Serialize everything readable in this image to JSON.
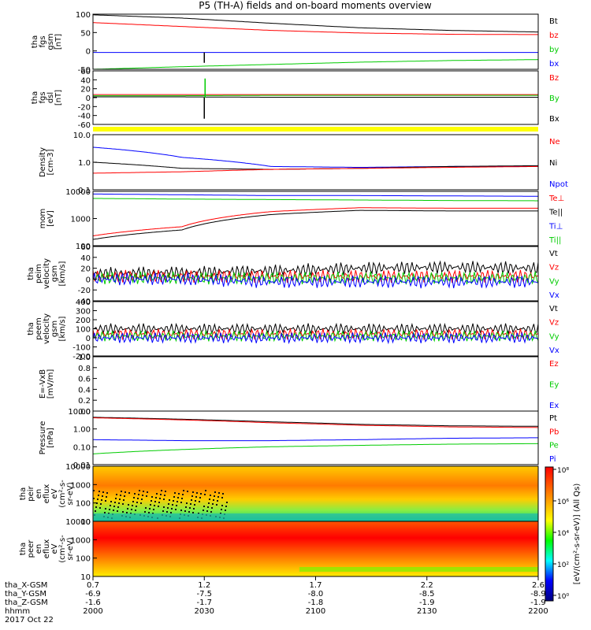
{
  "title": "P5 (TH-A) fields and on-board moments overview",
  "date_label": "2017 Oct 22",
  "footer": {
    "rows": [
      {
        "label": "tha_X-GSM",
        "values": [
          "0.7",
          "1.2",
          "1.7",
          "2.2",
          "2.6"
        ]
      },
      {
        "label": "tha_Y-GSM",
        "values": [
          "-6.9",
          "-7.5",
          "-8.0",
          "-8.5",
          "-8.9"
        ]
      },
      {
        "label": "tha_Z-GSM",
        "values": [
          "-1.6",
          "-1.7",
          "-1.8",
          "-1.9",
          "-1.9"
        ]
      },
      {
        "label": "hhmm",
        "values": [
          "2000",
          "2030",
          "2100",
          "2130",
          "2200"
        ]
      }
    ]
  },
  "colorbar": {
    "ticks": [
      "10⁸",
      "10⁶",
      "10⁴",
      "10²",
      "10⁰"
    ],
    "label": "[eV/(cm²-s-sr-eV)] (All Qs)"
  },
  "colors": {
    "black": "#000000",
    "red": "#ff0000",
    "green": "#00cc00",
    "blue": "#0000ff",
    "yellow": "#ffff00"
  },
  "chart_data": [
    {
      "type": "line",
      "ylabel": [
        "tha",
        "fgs",
        "gsm",
        "[nT]"
      ],
      "ylim": [
        -60,
        110
      ],
      "yticks": [
        "100",
        "50",
        "0",
        "-50"
      ],
      "legend": [
        {
          "label": "Bt",
          "color": "#000000"
        },
        {
          "label": "bz",
          "color": "#ff0000"
        },
        {
          "label": "by",
          "color": "#00cc00"
        },
        {
          "label": "bx",
          "color": "#0000ff"
        }
      ],
      "series": [
        {
          "name": "Bt",
          "color": "#000000",
          "values": [
            108,
            98,
            82,
            68,
            60,
            55
          ]
        },
        {
          "name": "bz",
          "color": "#ff0000",
          "values": [
            84,
            72,
            60,
            52,
            48,
            47
          ]
        },
        {
          "name": "by",
          "color": "#00cc00",
          "values": [
            -60,
            -52,
            -45,
            -38,
            -33,
            -30
          ]
        },
        {
          "name": "bx",
          "color": "#0000ff",
          "values": [
            -8,
            -8,
            -8,
            -8,
            -8,
            -8
          ]
        }
      ]
    },
    {
      "type": "line",
      "ylabel": [
        "tha",
        "fgs",
        "dsl",
        "[nT]"
      ],
      "ylim": [
        -70,
        70
      ],
      "yticks": [
        "60",
        "40",
        "20",
        "0",
        "-20",
        "-40",
        "-60"
      ],
      "legend": [
        {
          "label": "Bz",
          "color": "#ff0000"
        },
        {
          "label": "By",
          "color": "#00cc00"
        },
        {
          "label": "Bx",
          "color": "#000000"
        }
      ],
      "series": [
        {
          "name": "Bz",
          "color": "#ff0000",
          "values": [
            8,
            8,
            8,
            8,
            8,
            8
          ]
        },
        {
          "name": "By",
          "color": "#00cc00",
          "values": [
            5,
            5,
            6,
            6,
            6,
            6
          ]
        },
        {
          "name": "Bx",
          "color": "#000000",
          "values": [
            2,
            2,
            1,
            1,
            1,
            1
          ]
        }
      ]
    },
    {
      "type": "line",
      "ylabel": [
        "Density",
        "[cm-3]"
      ],
      "ylim": [
        0.1,
        10
      ],
      "log": true,
      "yticks": [
        "10.0",
        "1.0",
        "0.1"
      ],
      "legend": [
        {
          "label": "Ne",
          "color": "#ff0000"
        },
        {
          "label": "Ni",
          "color": "#000000"
        },
        {
          "label": "Npot",
          "color": "#0000ff"
        }
      ],
      "series": [
        {
          "name": "Npot",
          "color": "#0000ff",
          "values": [
            3.5,
            1.5,
            0.7,
            0.65,
            0.7,
            0.7
          ]
        },
        {
          "name": "Ni",
          "color": "#000000",
          "values": [
            1.0,
            0.6,
            0.55,
            0.6,
            0.7,
            0.75
          ]
        },
        {
          "name": "Ne",
          "color": "#ff0000",
          "values": [
            0.4,
            0.45,
            0.55,
            0.6,
            0.65,
            0.7
          ]
        }
      ]
    },
    {
      "type": "line",
      "ylabel": [
        "mom",
        "[eV]"
      ],
      "ylim": [
        100,
        10000
      ],
      "log": true,
      "yticks": [
        "10000",
        "1000",
        "100"
      ],
      "legend": [
        {
          "label": "Te⊥",
          "color": "#ff0000"
        },
        {
          "label": "Te||",
          "color": "#000000"
        },
        {
          "label": "Ti⊥",
          "color": "#0000ff"
        },
        {
          "label": "Ti||",
          "color": "#00cc00"
        }
      ],
      "series": [
        {
          "name": "Ti⊥",
          "color": "#0000ff",
          "values": [
            8000,
            7500,
            7000,
            7000,
            6800,
            6600
          ]
        },
        {
          "name": "Ti||",
          "color": "#00cc00",
          "values": [
            5500,
            5200,
            5000,
            4800,
            4600,
            4500
          ]
        },
        {
          "name": "Te⊥",
          "color": "#ff0000",
          "values": [
            230,
            500,
            1800,
            2500,
            2400,
            2400
          ]
        },
        {
          "name": "Te||",
          "color": "#000000",
          "values": [
            170,
            380,
            1400,
            2000,
            1900,
            1900
          ]
        }
      ]
    },
    {
      "type": "line",
      "ylabel": [
        "tha",
        "peim",
        "velocity",
        "gsm",
        "[km/s]"
      ],
      "ylim": [
        -40,
        60
      ],
      "yticks": [
        "60",
        "40",
        "20",
        "0",
        "-20",
        "-40"
      ],
      "legend": [
        {
          "label": "Vt",
          "color": "#000000"
        },
        {
          "label": "Vz",
          "color": "#ff0000"
        },
        {
          "label": "Vy",
          "color": "#00cc00"
        },
        {
          "label": "Vx",
          "color": "#0000ff"
        }
      ],
      "series": [
        {
          "name": "Vt",
          "color": "#000000",
          "values": [
            10,
            12,
            15,
            20,
            22,
            20
          ]
        },
        {
          "name": "Vz",
          "color": "#ff0000",
          "values": [
            5,
            5,
            5,
            5,
            5,
            5
          ]
        },
        {
          "name": "Vy",
          "color": "#00cc00",
          "values": [
            2,
            2,
            2,
            2,
            2,
            2
          ]
        },
        {
          "name": "Vx",
          "color": "#0000ff",
          "values": [
            0,
            0,
            -5,
            -5,
            -5,
            -5
          ]
        }
      ]
    },
    {
      "type": "line",
      "ylabel": [
        "tha",
        "peem",
        "velocity",
        "gsm",
        "[km/s]"
      ],
      "ylim": [
        -200,
        400
      ],
      "yticks": [
        "400",
        "300",
        "200",
        "100",
        "0",
        "-100",
        "-200"
      ],
      "legend": [
        {
          "label": "Vt",
          "color": "#000000"
        },
        {
          "label": "Vz",
          "color": "#ff0000"
        },
        {
          "label": "Vy",
          "color": "#00cc00"
        },
        {
          "label": "Vx",
          "color": "#0000ff"
        }
      ],
      "series": [
        {
          "name": "Vt",
          "color": "#000000",
          "values": [
            100,
            100,
            100,
            100,
            100,
            100
          ]
        },
        {
          "name": "Vz",
          "color": "#ff0000",
          "values": [
            40,
            40,
            40,
            40,
            40,
            40
          ]
        },
        {
          "name": "Vy",
          "color": "#00cc00",
          "values": [
            20,
            20,
            20,
            20,
            20,
            20
          ]
        },
        {
          "name": "Vx",
          "color": "#0000ff",
          "values": [
            0,
            0,
            0,
            0,
            0,
            0
          ]
        }
      ]
    },
    {
      "type": "line",
      "ylabel": [
        "E=-VxB",
        "[mV/m]"
      ],
      "ylim": [
        0,
        1
      ],
      "yticks": [
        "1.0",
        "0.8",
        "0.6",
        "0.4",
        "0.2",
        "0.0"
      ],
      "legend": [
        {
          "label": "Ez",
          "color": "#ff0000"
        },
        {
          "label": "Ey",
          "color": "#00cc00"
        },
        {
          "label": "Ex",
          "color": "#0000ff"
        }
      ],
      "series": []
    },
    {
      "type": "line",
      "ylabel": [
        "Pressure",
        "[nPa]"
      ],
      "ylim": [
        0.01,
        10
      ],
      "log": true,
      "yticks": [
        "10.00",
        "1.00",
        "0.10",
        "0.01"
      ],
      "legend": [
        {
          "label": "Pt",
          "color": "#000000"
        },
        {
          "label": "Pb",
          "color": "#ff0000"
        },
        {
          "label": "Pe",
          "color": "#00cc00"
        },
        {
          "label": "Pi",
          "color": "#0000ff"
        }
      ],
      "series": [
        {
          "name": "Pt",
          "color": "#000000",
          "values": [
            4.5,
            3.5,
            2.5,
            1.8,
            1.5,
            1.4
          ]
        },
        {
          "name": "Pb",
          "color": "#ff0000",
          "values": [
            4.2,
            3.2,
            2.2,
            1.6,
            1.3,
            1.2
          ]
        },
        {
          "name": "Pi",
          "color": "#0000ff",
          "values": [
            0.25,
            0.22,
            0.22,
            0.25,
            0.3,
            0.32
          ]
        },
        {
          "name": "Pe",
          "color": "#00cc00",
          "values": [
            0.04,
            0.07,
            0.1,
            0.12,
            0.14,
            0.15
          ]
        }
      ]
    },
    {
      "type": "heatmap",
      "ylabel": [
        "tha",
        "peir",
        "en",
        "eflux",
        "eV",
        "(cm²-s-",
        "sr-eV)"
      ],
      "ylim": [
        10,
        10000
      ],
      "log": true,
      "yticks": [
        "10000",
        "1000",
        "100",
        "10"
      ]
    },
    {
      "type": "heatmap",
      "ylabel": [
        "tha",
        "peer",
        "en",
        "eflux",
        "eV",
        "(cm²-s-",
        "sr-eV)"
      ],
      "ylim": [
        10,
        10000
      ],
      "log": true,
      "yticks": [
        "10000",
        "1000",
        "100",
        "10"
      ]
    }
  ]
}
